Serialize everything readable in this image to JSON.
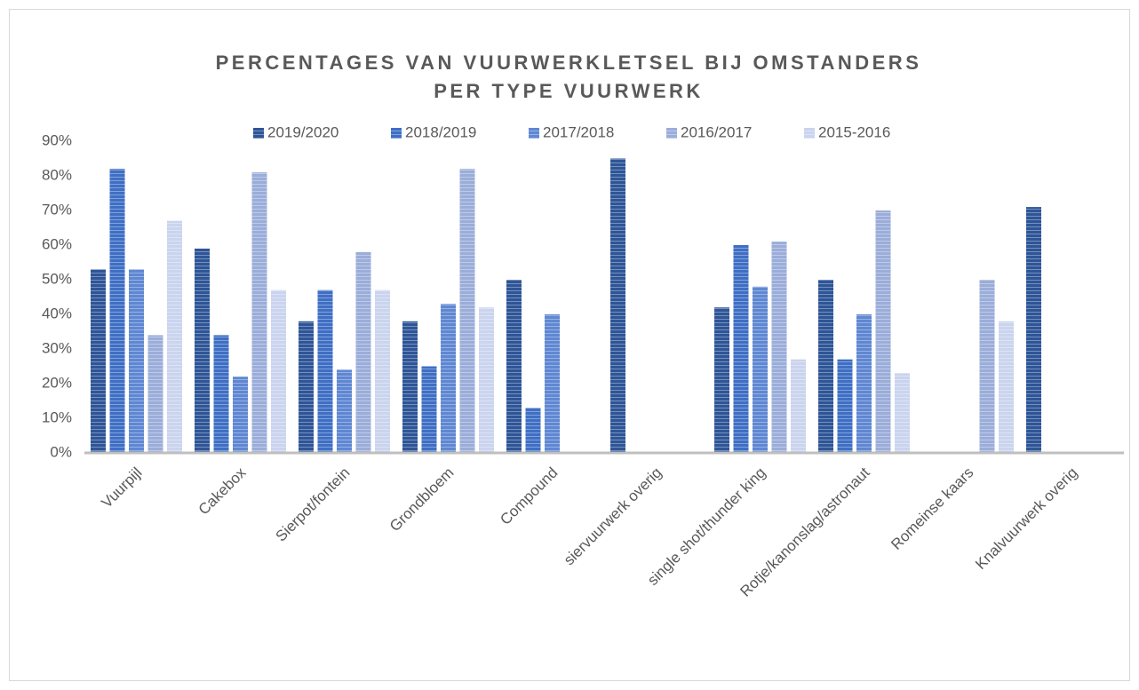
{
  "chart_data": {
    "type": "bar",
    "title_lines": [
      "PERCENTAGES VAN VUURWERKLETSEL BIJ OMSTANDERS",
      "PER TYPE VUURWERK"
    ],
    "categories": [
      "Vuurpijl",
      "Cakebox",
      "Sierpot/fontein",
      "Grondbloem",
      "Compound",
      "siervuurwerk overig",
      "single shot/thunder king",
      "Rotje/kanonslag/astronaut",
      "Romeinse kaars",
      "Knalvuurwerk overig"
    ],
    "series": [
      {
        "name": "2019/2020",
        "color": "#2e5597",
        "values": [
          53,
          59,
          38,
          38,
          50,
          85,
          42,
          50,
          null,
          71
        ]
      },
      {
        "name": "2018/2019",
        "color": "#3f6fc4",
        "values": [
          82,
          34,
          47,
          25,
          13,
          null,
          60,
          27,
          null,
          null
        ]
      },
      {
        "name": "2017/2018",
        "color": "#5f87d2",
        "values": [
          53,
          22,
          24,
          43,
          40,
          null,
          48,
          40,
          null,
          null
        ]
      },
      {
        "name": "2016/2017",
        "color": "#9badd9",
        "values": [
          34,
          81,
          58,
          82,
          null,
          null,
          61,
          70,
          50,
          null
        ]
      },
      {
        "name": "2015-2016",
        "color": "#cad4ee",
        "values": [
          67,
          47,
          47,
          42,
          null,
          null,
          27,
          23,
          38,
          null
        ]
      }
    ],
    "ylim": [
      0,
      90
    ],
    "yticks": [
      {
        "value": 0,
        "label": "0%"
      },
      {
        "value": 10,
        "label": "10%"
      },
      {
        "value": 20,
        "label": "20%"
      },
      {
        "value": 30,
        "label": "30%"
      },
      {
        "value": 40,
        "label": "40%"
      },
      {
        "value": 50,
        "label": "50%"
      },
      {
        "value": 60,
        "label": "60%"
      },
      {
        "value": 70,
        "label": "70%"
      },
      {
        "value": 80,
        "label": "80%"
      },
      {
        "value": 90,
        "label": "90%"
      }
    ],
    "grid": false,
    "legend": "top"
  }
}
